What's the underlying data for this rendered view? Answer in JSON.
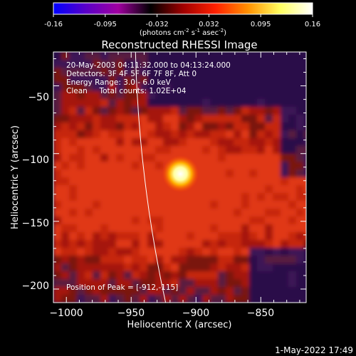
{
  "colorbar": {
    "ticks": [
      "-0.16",
      "-0.095",
      "-0.032",
      "0.032",
      "0.095",
      "0.16"
    ],
    "unit_label": "(photons cm",
    "unit_sup1": "-2",
    "unit_mid": " s",
    "unit_sup2": "-1",
    "unit_mid2": " asec",
    "unit_sup3": "-2",
    "unit_end": ")",
    "stops": [
      "#0000ff",
      "#5a00c8",
      "#a000a0",
      "#000000",
      "#a00000",
      "#ff2000",
      "#ff9000",
      "#ffff60",
      "#ffffff"
    ]
  },
  "chart_data": {
    "type": "heatmap",
    "title": "Reconstructed RHESSI Image",
    "xlabel": "Heliocentric X (arcsec)",
    "ylabel": "Heliocentric Y (arcsec)",
    "xlim": [
      -1010,
      -815
    ],
    "ylim": [
      -210,
      -25
    ],
    "xticks": [
      -1000,
      -950,
      -900,
      -850
    ],
    "yticks": [
      -50,
      -100,
      -150,
      -200
    ],
    "xtick_labels": [
      "−1000",
      "−950",
      "−900",
      "−850"
    ],
    "ytick_labels": [
      "−50",
      "−100",
      "−150",
      "−200"
    ],
    "peak": {
      "x": -912,
      "y": -115
    },
    "limb_color": "#ffffff",
    "annotations": [
      "20-May-2003 04:11:32.000 to 04:13:24.000",
      "Detectors: 3F 4F 5F 6F 7F 8F, Att 0",
      "Energy Range: 3.0 - 6.0 keV",
      "Clean     Total counts: 1.02E+04"
    ],
    "peak_label": "Position of Peak = [-912,-115]"
  },
  "footer": {
    "date": "1-May-2022 17:49"
  }
}
